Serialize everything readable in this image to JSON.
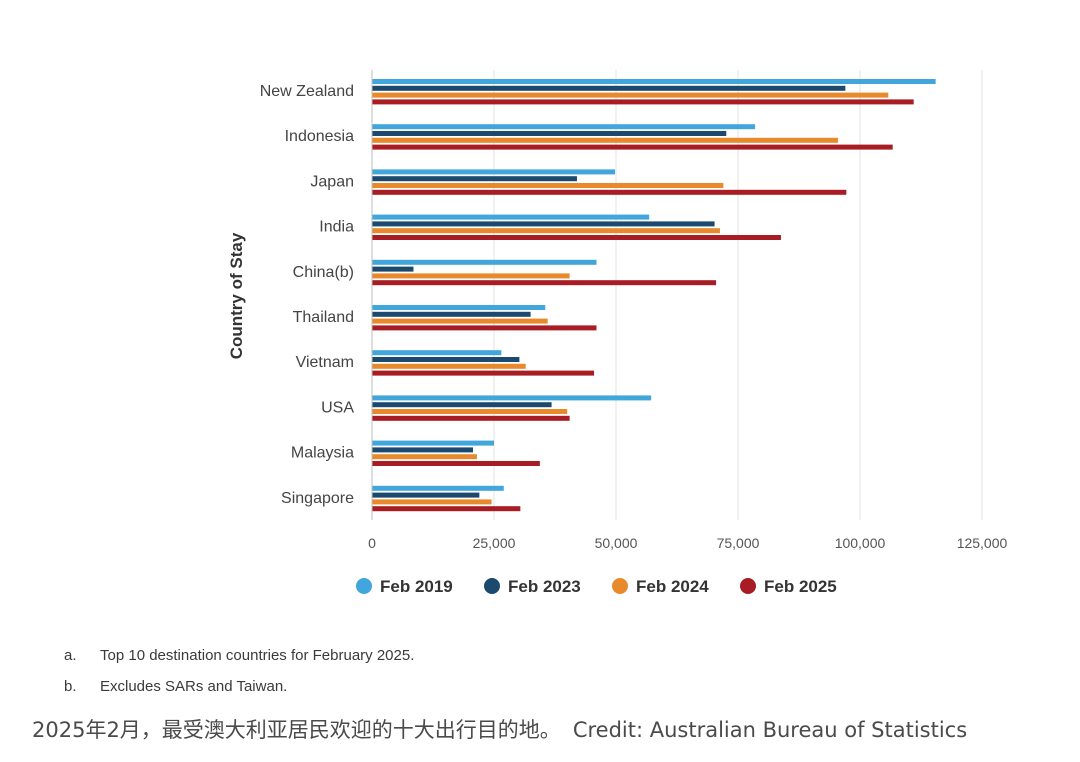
{
  "chart_data": {
    "type": "bar",
    "orientation": "horizontal",
    "title": "",
    "xlabel": "",
    "ylabel": "Country of Stay",
    "categories": [
      "New Zealand",
      "Indonesia",
      "Japan",
      "India",
      "China(b)",
      "Thailand",
      "Vietnam",
      "USA",
      "Malaysia",
      "Singapore"
    ],
    "series": [
      {
        "name": "Feb 2019",
        "color": "#41a6dc",
        "values": [
          115500,
          78500,
          49800,
          56800,
          46000,
          35500,
          26500,
          57200,
          25000,
          27000
        ]
      },
      {
        "name": "Feb 2023",
        "color": "#1b4a6e",
        "values": [
          97000,
          72600,
          42000,
          70200,
          8500,
          32500,
          30200,
          36800,
          20700,
          22000
        ]
      },
      {
        "name": "Feb 2024",
        "color": "#e88a2c",
        "values": [
          105800,
          95500,
          72000,
          71300,
          40500,
          36000,
          31500,
          40000,
          21500,
          24500
        ]
      },
      {
        "name": "Feb 2025",
        "color": "#a81c23",
        "values": [
          111000,
          106700,
          97200,
          83800,
          70500,
          46000,
          45500,
          40500,
          34400,
          30400
        ]
      }
    ],
    "xlim": [
      0,
      125000
    ],
    "xticks": [
      0,
      25000,
      50000,
      75000,
      100000,
      125000
    ],
    "xtick_labels": [
      "0",
      "25,000",
      "50,000",
      "75,000",
      "100,000",
      "125,000"
    ],
    "grid": "vertical",
    "legend_position": "bottom"
  },
  "footnotes": [
    {
      "marker": "a.",
      "text": "Top 10 destination countries for February 2025."
    },
    {
      "marker": "b.",
      "text": "Excludes SARs and Taiwan."
    }
  ],
  "caption": {
    "text": "2025年2月，最受澳大利亚居民欢迎的十大出行目的地。",
    "credit": "Credit: Australian Bureau of Statistics"
  }
}
